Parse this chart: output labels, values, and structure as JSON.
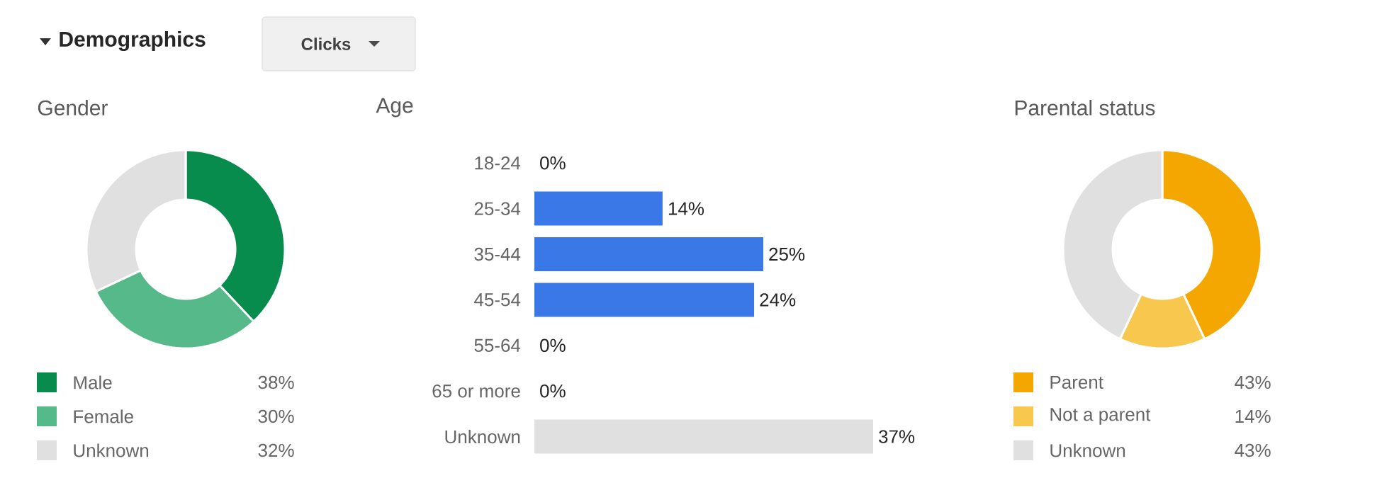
{
  "chart_data": [
    {
      "type": "other",
      "annotations": [
        "Demographics",
        "Clicks"
      ]
    },
    {
      "type": "donut",
      "title": "Gender",
      "categories": [
        "Male",
        "Female",
        "Unknown"
      ],
      "values": [
        38,
        30,
        32
      ],
      "value_labels": [
        "38%",
        "30%",
        "32%"
      ],
      "colors": [
        "#078c4d",
        "#55b98a",
        "#e0e0e0"
      ],
      "legend": "bottom"
    },
    {
      "type": "bar",
      "orientation": "horizontal",
      "title": "Age",
      "categories": [
        "18-24",
        "25-34",
        "35-44",
        "45-54",
        "55-64",
        "65 or more",
        "Unknown"
      ],
      "values": [
        0,
        14,
        25,
        24,
        0,
        0,
        37
      ],
      "value_labels": [
        "0%",
        "14%",
        "25%",
        "24%",
        "0%",
        "0%",
        "37%"
      ],
      "colors": [
        "#3b78e7",
        "#3b78e7",
        "#3b78e7",
        "#3b78e7",
        "#3b78e7",
        "#3b78e7",
        "#e0e0e0"
      ]
    },
    {
      "type": "donut",
      "title": "Parental status",
      "categories": [
        "Parent",
        "Not a parent",
        "Unknown"
      ],
      "values": [
        43,
        14,
        43
      ],
      "value_labels": [
        "43%",
        "14%",
        "43%"
      ],
      "colors": [
        "#f4a700",
        "#f7c84d",
        "#e0e0e0"
      ],
      "legend": "bottom"
    }
  ]
}
